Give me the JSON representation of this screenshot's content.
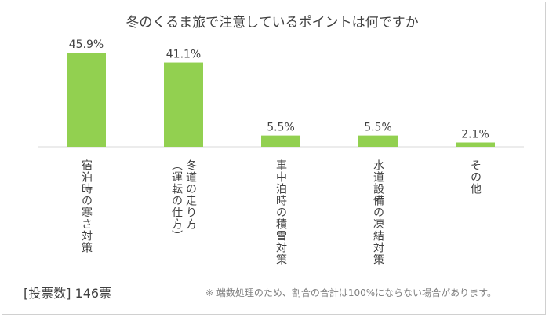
{
  "chart_data": {
    "type": "bar",
    "title": "冬のくるま旅で注意しているポイントは何ですか",
    "categories": [
      "宿泊時の寒さ対策",
      "冬道の走り方\n（運転の仕方）",
      "車中泊時の積雪対策",
      "水道設備の凍結対策",
      "その他"
    ],
    "series": [
      {
        "values": [
          45.9,
          41.1,
          5.5,
          5.5,
          2.1
        ]
      }
    ],
    "data_labels": [
      "45.9%",
      "41.1%",
      "5.5%",
      "5.5%",
      "2.1%"
    ],
    "ylim": [
      0,
      50
    ],
    "grid": false,
    "bar_color": "#92d050"
  },
  "footer": {
    "votes": "[投票数]  146票",
    "note": "※  端数処理のため、割合の合計は100%にならない場合があります。"
  }
}
